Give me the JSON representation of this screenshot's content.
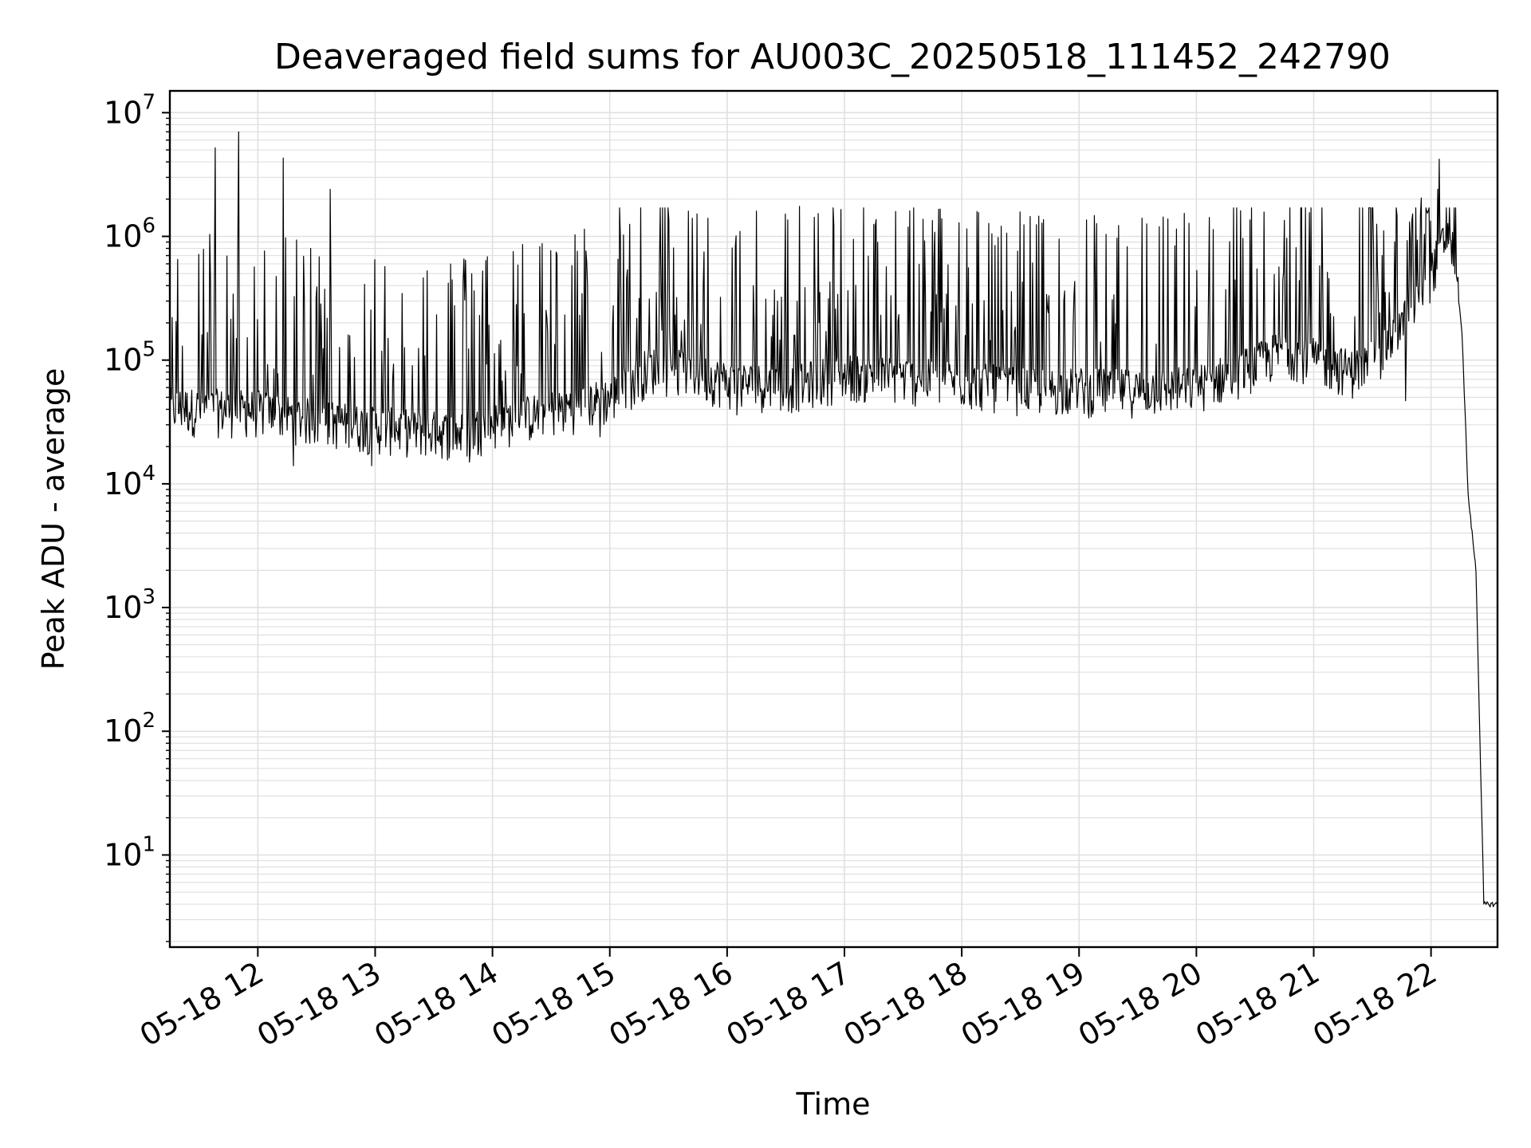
{
  "chart_data": {
    "type": "line",
    "title": "Deaveraged field sums for AU003C_20250518_111452_242790",
    "xlabel": "Time",
    "ylabel": "Peak ADU - average",
    "yscale": "log",
    "ylim": [
      1.8,
      15000000
    ],
    "xlim": [
      "05-18 11:15",
      "05-18 22:34"
    ],
    "grid": true,
    "line_color": "#000000",
    "grid_color": "#e0e0e0",
    "x_ticks": [
      {
        "time": "05-18 12:00",
        "label": "05-18 12"
      },
      {
        "time": "05-18 13:00",
        "label": "05-18 13"
      },
      {
        "time": "05-18 14:00",
        "label": "05-18 14"
      },
      {
        "time": "05-18 15:00",
        "label": "05-18 15"
      },
      {
        "time": "05-18 16:00",
        "label": "05-18 16"
      },
      {
        "time": "05-18 17:00",
        "label": "05-18 17"
      },
      {
        "time": "05-18 18:00",
        "label": "05-18 18"
      },
      {
        "time": "05-18 19:00",
        "label": "05-18 19"
      },
      {
        "time": "05-18 20:00",
        "label": "05-18 20"
      },
      {
        "time": "05-18 21:00",
        "label": "05-18 21"
      },
      {
        "time": "05-18 22:00",
        "label": "05-18 22"
      }
    ],
    "y_ticks": [
      {
        "value": 10,
        "base": "10",
        "exp": "1"
      },
      {
        "value": 100,
        "base": "10",
        "exp": "2"
      },
      {
        "value": 1000,
        "base": "10",
        "exp": "3"
      },
      {
        "value": 10000,
        "base": "10",
        "exp": "4"
      },
      {
        "value": 100000,
        "base": "10",
        "exp": "5"
      },
      {
        "value": 1000000,
        "base": "10",
        "exp": "6"
      },
      {
        "value": 10000000,
        "base": "10",
        "exp": "7"
      }
    ],
    "series": [
      {
        "baseline": [
          {
            "time": "05-18 11:15",
            "value": 40000
          },
          {
            "time": "05-18 12:00",
            "value": 38000
          },
          {
            "time": "05-18 12:30",
            "value": 32000
          },
          {
            "time": "05-18 13:00",
            "value": 28000
          },
          {
            "time": "05-18 13:30",
            "value": 26000
          },
          {
            "time": "05-18 13:45",
            "value": 25000
          },
          {
            "time": "05-18 14:00",
            "value": 30000
          },
          {
            "time": "05-18 14:30",
            "value": 38000
          },
          {
            "time": "05-18 15:00",
            "value": 48000
          },
          {
            "time": "05-18 15:20",
            "value": 85000
          },
          {
            "time": "05-18 15:40",
            "value": 80000
          },
          {
            "time": "05-18 16:00",
            "value": 65000
          },
          {
            "time": "05-18 16:30",
            "value": 60000
          },
          {
            "time": "05-18 17:00",
            "value": 75000
          },
          {
            "time": "05-18 17:30",
            "value": 70000
          },
          {
            "time": "05-18 18:00",
            "value": 65000
          },
          {
            "time": "05-18 18:30",
            "value": 58000
          },
          {
            "time": "05-18 19:00",
            "value": 58000
          },
          {
            "time": "05-18 19:30",
            "value": 56000
          },
          {
            "time": "05-18 20:00",
            "value": 60000
          },
          {
            "time": "05-18 20:30",
            "value": 90000
          },
          {
            "time": "05-18 20:45",
            "value": 120000
          },
          {
            "time": "05-18 21:00",
            "value": 100000
          },
          {
            "time": "05-18 21:20",
            "value": 80000
          },
          {
            "time": "05-18 21:35",
            "value": 110000
          },
          {
            "time": "05-18 21:50",
            "value": 250000
          },
          {
            "time": "05-18 22:00",
            "value": 500000
          },
          {
            "time": "05-18 22:08",
            "value": 1000000
          },
          {
            "time": "05-18 22:12",
            "value": 700000
          },
          {
            "time": "05-18 22:16",
            "value": 150000
          },
          {
            "time": "05-18 22:19",
            "value": 8000
          },
          {
            "time": "05-18 22:23",
            "value": 2000
          },
          {
            "time": "05-18 22:27",
            "value": 4
          },
          {
            "time": "05-18 22:34",
            "value": 4
          }
        ],
        "spikes": [
          {
            "time": "05-18 11:38",
            "value": 5200000
          },
          {
            "time": "05-18 11:50",
            "value": 7000000
          },
          {
            "time": "05-18 12:13",
            "value": 4300000
          },
          {
            "time": "05-18 12:37",
            "value": 2400000
          },
          {
            "time": "05-18 15:05",
            "value": 1700000
          },
          {
            "time": "05-18 15:40",
            "value": 1600000
          },
          {
            "time": "05-18 16:15",
            "value": 1600000
          },
          {
            "time": "05-18 16:37",
            "value": 1750000
          },
          {
            "time": "05-18 16:58",
            "value": 1650000
          },
          {
            "time": "05-18 20:45",
            "value": 1350000
          },
          {
            "time": "05-18 21:58",
            "value": 1600000
          }
        ],
        "dips": [
          {
            "time": "05-18 12:18",
            "value": 14000
          },
          {
            "time": "05-18 12:58",
            "value": 14000
          },
          {
            "time": "05-18 13:48",
            "value": 15000
          },
          {
            "time": "05-18 14:55",
            "value": 24000
          },
          {
            "time": "05-18 16:05",
            "value": 36000
          },
          {
            "time": "05-18 19:05",
            "value": 34000
          },
          {
            "time": "05-18 21:47",
            "value": 47000
          }
        ]
      }
    ]
  }
}
